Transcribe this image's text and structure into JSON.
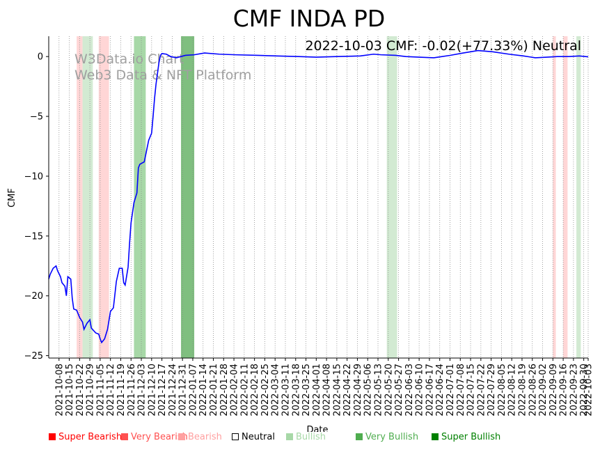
{
  "chart_data": {
    "type": "line",
    "title": "CMF INDA PD",
    "xlabel": "Date",
    "ylabel": "CMF",
    "ylim": [
      -25.2,
      1.7
    ],
    "yticks": [
      0,
      -5,
      -10,
      -15,
      -20,
      -25
    ],
    "ytick_labels": [
      "0",
      "−5",
      "−10",
      "−15",
      "−20",
      "−25"
    ],
    "x_start": "2021-10-01",
    "x_end": "2022-10-03",
    "xtick_dates": [
      "2021-10-08",
      "2021-10-15",
      "2021-10-22",
      "2021-10-29",
      "2021-11-05",
      "2021-11-12",
      "2021-11-19",
      "2021-11-26",
      "2021-12-03",
      "2021-12-10",
      "2021-12-17",
      "2021-12-24",
      "2021-12-31",
      "2022-01-07",
      "2022-01-14",
      "2022-01-21",
      "2022-01-28",
      "2022-02-04",
      "2022-02-11",
      "2022-02-18",
      "2022-02-25",
      "2022-03-04",
      "2022-03-11",
      "2022-03-18",
      "2022-03-25",
      "2022-04-01",
      "2022-04-08",
      "2022-04-15",
      "2022-04-22",
      "2022-04-29",
      "2022-05-06",
      "2022-05-13",
      "2022-05-20",
      "2022-05-27",
      "2022-06-03",
      "2022-06-10",
      "2022-06-17",
      "2022-06-24",
      "2022-07-01",
      "2022-07-08",
      "2022-07-15",
      "2022-07-22",
      "2022-07-29",
      "2022-08-05",
      "2022-08-12",
      "2022-08-19",
      "2022-08-26",
      "2022-09-02",
      "2022-09-09",
      "2022-09-16",
      "2022-09-23",
      "2022-09-30",
      "2022-10-03"
    ],
    "annotation": "2022-10-03 CMF: -0.02(+77.33%) Neutral",
    "watermark": [
      "W3Data.io Chart",
      "Web3 Data & NFT Platform"
    ],
    "grid": "vertical dotted",
    "series": [
      {
        "name": "CMF",
        "color": "#0000ff",
        "points": [
          [
            "2021-10-01",
            -18.6
          ],
          [
            "2021-10-02",
            -18.2
          ],
          [
            "2021-10-04",
            -17.7
          ],
          [
            "2021-10-06",
            -17.5
          ],
          [
            "2021-10-07",
            -17.9
          ],
          [
            "2021-10-09",
            -18.4
          ],
          [
            "2021-10-10",
            -18.9
          ],
          [
            "2021-10-12",
            -19.2
          ],
          [
            "2021-10-13",
            -20.0
          ],
          [
            "2021-10-14",
            -18.4
          ],
          [
            "2021-10-16",
            -18.6
          ],
          [
            "2021-10-17",
            -20.2
          ],
          [
            "2021-10-18",
            -21.1
          ],
          [
            "2021-10-20",
            -21.2
          ],
          [
            "2021-10-22",
            -21.8
          ],
          [
            "2021-10-24",
            -22.2
          ],
          [
            "2021-10-25",
            -22.8
          ],
          [
            "2021-10-27",
            -22.3
          ],
          [
            "2021-10-29",
            -22.0
          ],
          [
            "2021-10-30",
            -22.7
          ],
          [
            "2021-11-02",
            -23.1
          ],
          [
            "2021-11-04",
            -23.2
          ],
          [
            "2021-11-05",
            -23.6
          ],
          [
            "2021-11-06",
            -23.9
          ],
          [
            "2021-11-08",
            -23.6
          ],
          [
            "2021-11-10",
            -22.8
          ],
          [
            "2021-11-12",
            -21.3
          ],
          [
            "2021-11-14",
            -21.0
          ],
          [
            "2021-11-16",
            -18.8
          ],
          [
            "2021-11-18",
            -17.7
          ],
          [
            "2021-11-20",
            -17.7
          ],
          [
            "2021-11-21",
            -18.9
          ],
          [
            "2021-11-22",
            -19.1
          ],
          [
            "2021-11-24",
            -17.6
          ],
          [
            "2021-11-25",
            -15.6
          ],
          [
            "2021-11-26",
            -13.9
          ],
          [
            "2021-11-28",
            -12.2
          ],
          [
            "2021-11-30",
            -11.4
          ],
          [
            "2021-12-01",
            -9.3
          ],
          [
            "2021-12-02",
            -9.0
          ],
          [
            "2021-12-05",
            -8.8
          ],
          [
            "2021-12-06",
            -8.2
          ],
          [
            "2021-12-08",
            -7.0
          ],
          [
            "2021-12-10",
            -6.4
          ],
          [
            "2021-12-11",
            -5.0
          ],
          [
            "2021-12-12",
            -3.5
          ],
          [
            "2021-12-13",
            -2.3
          ],
          [
            "2021-12-14",
            -1.4
          ],
          [
            "2021-12-15",
            -0.5
          ],
          [
            "2021-12-16",
            0.1
          ],
          [
            "2021-12-17",
            0.25
          ],
          [
            "2021-12-20",
            0.2
          ],
          [
            "2021-12-23",
            0.0
          ],
          [
            "2021-12-27",
            -0.1
          ],
          [
            "2022-01-02",
            0.1
          ],
          [
            "2022-01-08",
            0.15
          ],
          [
            "2022-01-15",
            0.3
          ],
          [
            "2022-01-25",
            0.2
          ],
          [
            "2022-02-05",
            0.15
          ],
          [
            "2022-02-20",
            0.1
          ],
          [
            "2022-03-05",
            0.05
          ],
          [
            "2022-03-20",
            0.0
          ],
          [
            "2022-04-01",
            -0.05
          ],
          [
            "2022-04-15",
            0.0
          ],
          [
            "2022-05-01",
            0.05
          ],
          [
            "2022-05-10",
            0.2
          ],
          [
            "2022-05-15",
            0.15
          ],
          [
            "2022-05-25",
            0.1
          ],
          [
            "2022-06-01",
            0.0
          ],
          [
            "2022-06-10",
            -0.05
          ],
          [
            "2022-06-20",
            -0.1
          ],
          [
            "2022-07-01",
            0.1
          ],
          [
            "2022-07-10",
            0.3
          ],
          [
            "2022-07-20",
            0.5
          ],
          [
            "2022-07-30",
            0.4
          ],
          [
            "2022-08-10",
            0.2
          ],
          [
            "2022-08-20",
            0.05
          ],
          [
            "2022-08-28",
            -0.1
          ],
          [
            "2022-09-05",
            -0.05
          ],
          [
            "2022-09-12",
            0.0
          ],
          [
            "2022-09-20",
            0.0
          ],
          [
            "2022-09-27",
            0.05
          ],
          [
            "2022-10-03",
            -0.02
          ]
        ]
      }
    ],
    "bands": [
      {
        "start": "2021-10-20",
        "end": "2021-10-24",
        "type": "bearish"
      },
      {
        "start": "2021-10-24",
        "end": "2021-10-31",
        "type": "bullish"
      },
      {
        "start": "2021-11-04",
        "end": "2021-11-11",
        "type": "bearish"
      },
      {
        "start": "2021-11-28",
        "end": "2021-12-06",
        "type": "very_bullish"
      },
      {
        "start": "2021-12-30",
        "end": "2022-01-08",
        "type": "super_bullish"
      },
      {
        "start": "2022-05-19",
        "end": "2022-05-26",
        "type": "bullish"
      },
      {
        "start": "2022-09-09",
        "end": "2022-09-11",
        "type": "bearish"
      },
      {
        "start": "2022-09-16",
        "end": "2022-09-19",
        "type": "bearish"
      },
      {
        "start": "2022-09-25",
        "end": "2022-09-28",
        "type": "bullish"
      }
    ],
    "band_colors": {
      "bearish": "#ffd6d6",
      "bullish": "#d2ead2",
      "very_bullish": "#a7d8a7",
      "super_bullish": "#7fbf7f"
    },
    "legend": [
      {
        "label": "Super Bearish",
        "color": "#ff0000",
        "text_color": "#ff0000"
      },
      {
        "label": "Very Bearish",
        "color": "#ff5050",
        "text_color": "#ff5050"
      },
      {
        "label": "Bearish",
        "color": "#ffa0a0",
        "text_color": "#ffa0a0"
      },
      {
        "label": "Neutral",
        "color": "#ffffff",
        "text_color": "#000000"
      },
      {
        "label": "Bullish",
        "color": "#a7d8a7",
        "text_color": "#a7d8a7"
      },
      {
        "label": "Very Bullish",
        "color": "#4fad4f",
        "text_color": "#4fad4f"
      },
      {
        "label": "Super Bullish",
        "color": "#008000",
        "text_color": "#008000"
      }
    ]
  }
}
